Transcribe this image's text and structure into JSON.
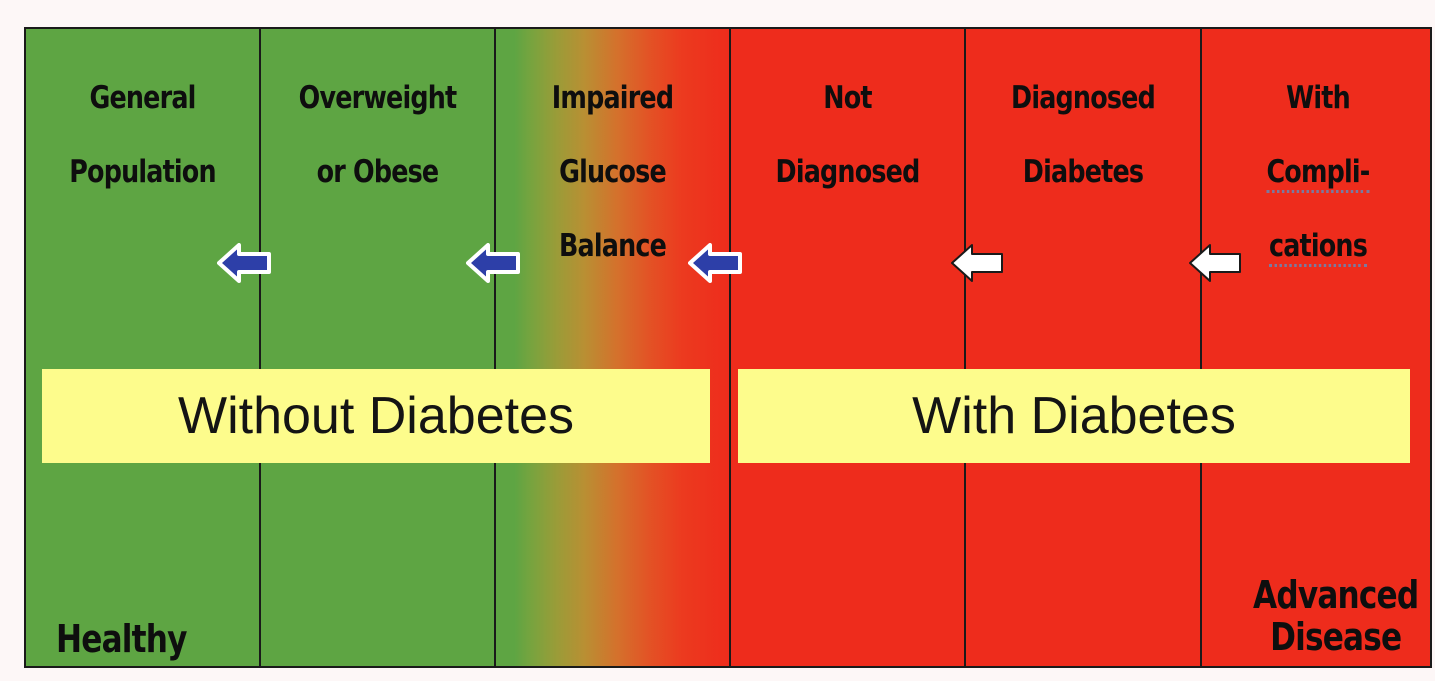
{
  "columns": [
    {
      "title_line1": "General",
      "title_line2": "Population",
      "title_line3": "",
      "color": "#5ea543"
    },
    {
      "title_line1": "Overweight",
      "title_line2": "or Obese",
      "title_line3": "",
      "color": "#5ea543"
    },
    {
      "title_line1": "Impaired",
      "title_line2": "Glucose",
      "title_line3": "Balance",
      "color": "gradient"
    },
    {
      "title_line1": "Not",
      "title_line2": "Diagnosed",
      "title_line3": "",
      "color": "#ee2c1c"
    },
    {
      "title_line1": "Diagnosed",
      "title_line2": "Diabetes",
      "title_line3": "",
      "color": "#ee2c1c"
    },
    {
      "title_line1": "With",
      "title_line2": "Compli-",
      "title_line3": "cations",
      "color": "#ee2c1c"
    }
  ],
  "banners": {
    "without": "Without Diabetes",
    "with": "With Diabetes"
  },
  "labels": {
    "healthy": "Healthy",
    "advanced_line1": "Advanced",
    "advanced_line2": "Disease"
  },
  "arrows": [
    {
      "icon": "left-arrow-blue-icon",
      "fill": "#2d3fa8"
    },
    {
      "icon": "left-arrow-blue-icon",
      "fill": "#2d3fa8"
    },
    {
      "icon": "left-arrow-blue-icon",
      "fill": "#2d3fa8"
    },
    {
      "icon": "left-arrow-white-icon",
      "fill": "#ffffff"
    },
    {
      "icon": "left-arrow-white-icon",
      "fill": "#ffffff"
    }
  ],
  "colors": {
    "green": "#5ea543",
    "red": "#ee2c1c",
    "banner": "#fdfc8c",
    "border": "#1a1a1a"
  }
}
